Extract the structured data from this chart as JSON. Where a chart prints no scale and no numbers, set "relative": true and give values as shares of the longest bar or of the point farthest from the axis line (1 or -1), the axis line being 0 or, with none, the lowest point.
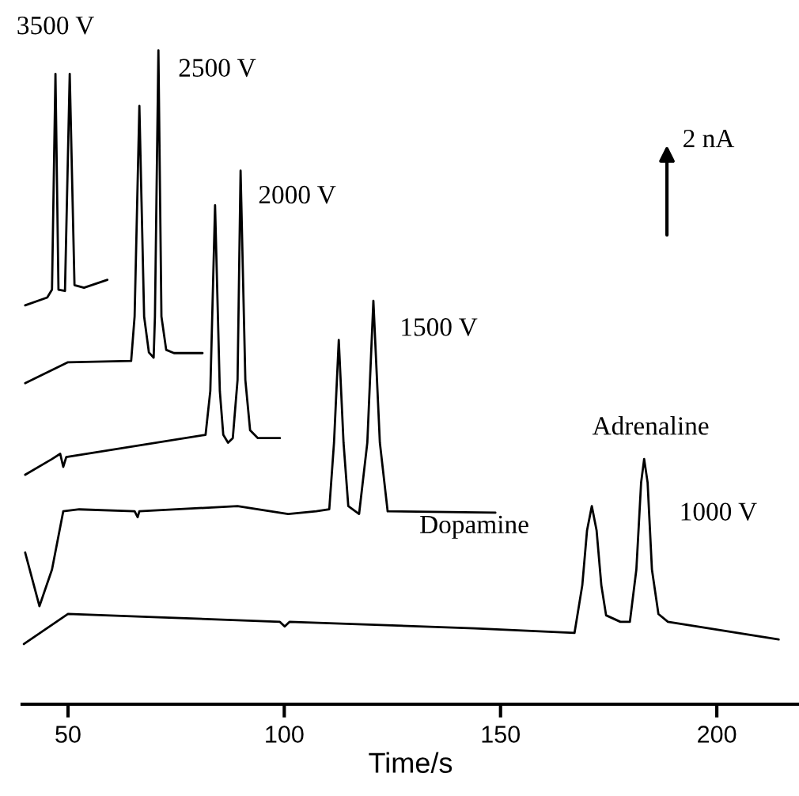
{
  "chart_data": {
    "type": "line",
    "relative": true,
    "xlabel": "Time/s",
    "xlim": [
      39.4,
      219
    ],
    "xticks": [
      50,
      100,
      150,
      200
    ],
    "tick_labels": "x",
    "grid": false,
    "marker": "none",
    "line_style": "solid",
    "series": [
      {
        "name": "3500 V",
        "color": "#000000",
        "x": [
          40.1,
          45.2,
          46.3,
          47.1,
          47.8,
          49.3,
          50.4,
          51.5,
          53.7,
          59.1
        ],
        "values": [
          0.61,
          0.622,
          0.634,
          0.964,
          0.634,
          0.632,
          0.964,
          0.641,
          0.637,
          0.649
        ]
      },
      {
        "name": "2500 V",
        "color": "#000000",
        "x": [
          40.1,
          50.0,
          64.6,
          65.4,
          66.5,
          67.6,
          68.7,
          69.8,
          70.1,
          70.9,
          71.6,
          72.7,
          74.5,
          81.1
        ],
        "values": [
          0.491,
          0.523,
          0.525,
          0.593,
          0.915,
          0.593,
          0.538,
          0.53,
          0.593,
          1.0,
          0.593,
          0.542,
          0.537,
          0.537
        ]
      },
      {
        "name": "2000 V",
        "color": "#000000",
        "x": [
          40.1,
          46.3,
          48.2,
          48.9,
          49.6,
          81.8,
          82.9,
          84.0,
          85.1,
          85.9,
          87.0,
          88.1,
          89.2,
          89.9,
          91.0,
          92.1,
          93.9,
          99.0
        ],
        "values": [
          0.351,
          0.375,
          0.383,
          0.363,
          0.378,
          0.412,
          0.479,
          0.763,
          0.479,
          0.412,
          0.4,
          0.407,
          0.496,
          0.816,
          0.496,
          0.419,
          0.407,
          0.407
        ]
      },
      {
        "name": "1500 V",
        "color": "#000000",
        "x": [
          40.1,
          43.4,
          46.3,
          48.9,
          52.6,
          65.4,
          66.1,
          66.5,
          89.2,
          100.9,
          107.4,
          110.4,
          111.5,
          112.6,
          113.7,
          114.8,
          117.3,
          119.2,
          120.6,
          122.1,
          123.9,
          148.8
        ],
        "values": [
          0.232,
          0.15,
          0.206,
          0.295,
          0.298,
          0.295,
          0.286,
          0.295,
          0.303,
          0.291,
          0.295,
          0.298,
          0.4,
          0.557,
          0.4,
          0.303,
          0.291,
          0.4,
          0.617,
          0.4,
          0.295,
          0.293
        ]
      },
      {
        "name": "1000 V",
        "color": "#000000",
        "x": [
          39.8,
          50.0,
          70.9,
          99.0,
          100.1,
          101.2,
          144.0,
          167.1,
          168.9,
          170.0,
          171.1,
          172.2,
          173.3,
          174.4,
          177.7,
          179.9,
          181.4,
          182.5,
          183.2,
          184.0,
          185.0,
          186.5,
          188.7,
          214.3
        ],
        "values": [
          0.092,
          0.138,
          0.133,
          0.126,
          0.119,
          0.126,
          0.116,
          0.109,
          0.182,
          0.266,
          0.303,
          0.266,
          0.182,
          0.136,
          0.126,
          0.126,
          0.206,
          0.339,
          0.375,
          0.339,
          0.206,
          0.138,
          0.126,
          0.099
        ]
      }
    ],
    "annotations": [
      "Dopamine",
      {
        "text": "Adrenaline",
        "x": 183.2,
        "y": 0.375
      },
      "2 nA"
    ]
  }
}
